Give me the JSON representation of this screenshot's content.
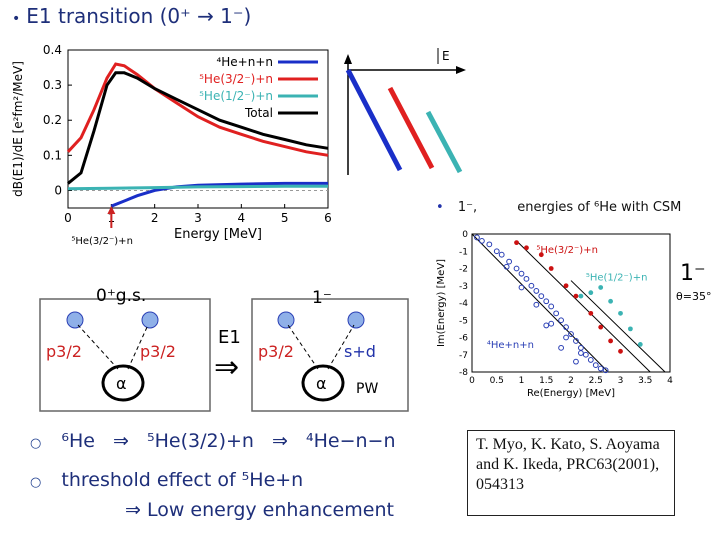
{
  "title": {
    "bullet": "•",
    "text": "E1 transition (0⁺ → 1⁻)"
  },
  "chart_data": [
    {
      "type": "line",
      "name": "E1 strength distribution",
      "xlabel": "Energy [MeV]",
      "ylabel": "dB(E1)/dE [e²fm²/MeV]",
      "xlim": [
        0,
        6
      ],
      "ylim": [
        -0.05,
        0.4
      ],
      "xticks": [
        "0",
        "1",
        "2",
        "3",
        "4",
        "5",
        "6"
      ],
      "yticks": [
        "0",
        "0.1",
        "0.2",
        "0.3",
        "0.4"
      ],
      "annotation": {
        "arrow_at_x": 1.0,
        "label": "⁵He(3/2⁻)+n"
      },
      "series": [
        {
          "name": "⁴He+n+n",
          "color": "#1a2fc8",
          "x": [
            1.0,
            1.3,
            1.6,
            2.0,
            2.5,
            3.0,
            4.0,
            5.0,
            6.0
          ],
          "y": [
            -0.045,
            -0.03,
            -0.015,
            0.0,
            0.01,
            0.015,
            0.018,
            0.02,
            0.02
          ]
        },
        {
          "name": "⁵He(3/2⁻)+n",
          "color": "#e02020",
          "x": [
            0,
            0.3,
            0.6,
            0.9,
            1.1,
            1.3,
            1.6,
            2.0,
            2.5,
            3.0,
            3.5,
            4.0,
            4.5,
            5.0,
            5.5,
            6.0
          ],
          "y": [
            0.11,
            0.15,
            0.23,
            0.32,
            0.36,
            0.355,
            0.33,
            0.29,
            0.25,
            0.21,
            0.18,
            0.16,
            0.14,
            0.125,
            0.11,
            0.1
          ]
        },
        {
          "name": "⁵He(1/2⁻)+n",
          "color": "#3bb3b3",
          "x": [
            0,
            1,
            2,
            3,
            4,
            5,
            6
          ],
          "y": [
            0.005,
            0.006,
            0.008,
            0.01,
            0.011,
            0.012,
            0.012
          ]
        },
        {
          "name": "Total",
          "color": "#000000",
          "x": [
            0,
            0.3,
            0.6,
            0.9,
            1.1,
            1.3,
            1.6,
            2.0,
            2.5,
            3.0,
            3.5,
            4.0,
            4.5,
            5.0,
            5.5,
            6.0
          ],
          "y": [
            0.02,
            0.05,
            0.17,
            0.3,
            0.335,
            0.335,
            0.32,
            0.29,
            0.26,
            0.23,
            0.2,
            0.18,
            0.16,
            0.145,
            0.13,
            0.12
          ]
        }
      ]
    },
    {
      "type": "scatter",
      "name": "energies of 6He with CSM",
      "title_bullet": "•",
      "title": "1⁻,",
      "title2": "energies of ⁶He with CSM",
      "xlabel": "Re(Energy) [MeV]",
      "ylabel": "Im(Energy) [MeV]",
      "xlim": [
        0,
        4
      ],
      "ylim": [
        -8,
        0
      ],
      "xticks": [
        "0",
        "0.5",
        "1",
        "1.5",
        "2",
        "2.5",
        "3",
        "3.5",
        "4"
      ],
      "yticks": [
        "0",
        "-1",
        "-2",
        "-3",
        "-4",
        "-5",
        "-6",
        "-7",
        "-8"
      ],
      "big_label": "1⁻",
      "theta_label": "θ=35°",
      "labels": {
        "he5_32": "⁵He(3/2⁻)+n",
        "he5_12": "⁵He(1/2⁻)+n",
        "he4nn": "⁴He+n+n"
      },
      "series": [
        {
          "name": "⁵He(3/2⁻)+n",
          "color": "#cc1111",
          "x": [
            0.9,
            1.1,
            1.4,
            1.6,
            1.9,
            2.1,
            2.4,
            2.6,
            2.8,
            3.0
          ],
          "y": [
            -0.5,
            -0.8,
            -1.2,
            -2.0,
            -3.0,
            -3.6,
            -4.6,
            -5.4,
            -6.2,
            -6.8
          ]
        },
        {
          "name": "⁵He(1/2⁻)+n",
          "color": "#3bb3b3",
          "x": [
            2.2,
            2.4,
            2.6,
            2.8,
            3.0,
            3.2,
            3.4
          ],
          "y": [
            -3.6,
            -3.4,
            -3.1,
            -3.9,
            -4.6,
            -5.5,
            -6.4
          ]
        },
        {
          "name": "⁴He+n+n",
          "color": "#2a3fb5",
          "x": [
            0.1,
            0.2,
            0.35,
            0.5,
            0.6,
            0.75,
            0.9,
            1.0,
            1.1,
            1.2,
            1.3,
            1.4,
            1.5,
            1.6,
            1.7,
            1.8,
            1.9,
            2.0,
            2.1,
            2.2,
            2.3,
            2.4,
            2.5,
            2.6,
            2.7,
            0.7,
            1.0,
            1.3,
            1.6,
            1.9,
            2.2,
            1.5,
            1.8,
            2.1
          ],
          "y": [
            -0.2,
            -0.4,
            -0.6,
            -1.0,
            -1.2,
            -1.6,
            -2.0,
            -2.3,
            -2.6,
            -3.0,
            -3.3,
            -3.6,
            -3.9,
            -4.2,
            -4.6,
            -5.0,
            -5.4,
            -5.8,
            -6.2,
            -6.6,
            -7.0,
            -7.3,
            -7.6,
            -7.8,
            -7.9,
            -1.9,
            -3.1,
            -4.1,
            -5.2,
            -6.0,
            -6.9,
            -5.3,
            -6.6,
            -7.4
          ]
        }
      ]
    }
  ],
  "energy_axis": {
    "label": "E"
  },
  "diagram": {
    "left_label": "0⁺g.s.",
    "right_label": "1⁻",
    "p32": "p3/2",
    "alpha": "α",
    "sd": "s+d",
    "pw": "PW",
    "transition": "E1",
    "arrow": "⇒"
  },
  "bottom": {
    "line1_prefix": "⁶He",
    "line1_arrow": "⇒",
    "line1_mid": "⁵He(3/2)+n",
    "line1_end": "⁴He−n−n",
    "line2": "threshold effect of ⁵He+n",
    "line3": "⇒ Low energy enhancement"
  },
  "reference": "T. Myo, K. Kato, S. Aoyama and K. Ikeda, PRC63(2001),   054313"
}
